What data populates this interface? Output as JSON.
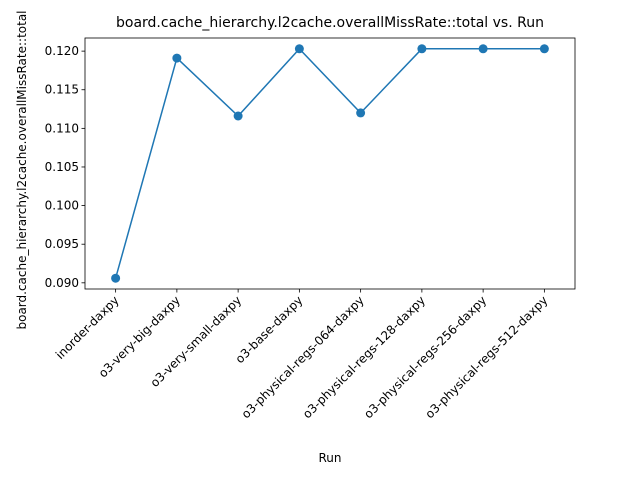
{
  "chart_data": {
    "type": "line",
    "title": "board.cache_hierarchy.l2cache.overallMissRate::total vs. Run",
    "xlabel": "Run",
    "ylabel": "board.cache_hierarchy.l2cache.overallMissRate::total",
    "categories": [
      "inorder-daxpy",
      "o3-very-big-daxpy",
      "o3-very-small-daxpy",
      "o3-base-daxpy",
      "o3-physical-regs-064-daxpy",
      "o3-physical-regs-128-daxpy",
      "o3-physical-regs-256-daxpy",
      "o3-physical-regs-512-daxpy"
    ],
    "values": [
      0.0906,
      0.1191,
      0.1116,
      0.1203,
      0.112,
      0.1203,
      0.1203,
      0.1203
    ],
    "yticks": [
      "0.090",
      "0.095",
      "0.100",
      "0.105",
      "0.110",
      "0.115",
      "0.120"
    ],
    "ylim": [
      0.0892,
      0.1217
    ],
    "grid": false,
    "marker": "circle",
    "color": "#1f77b4"
  }
}
